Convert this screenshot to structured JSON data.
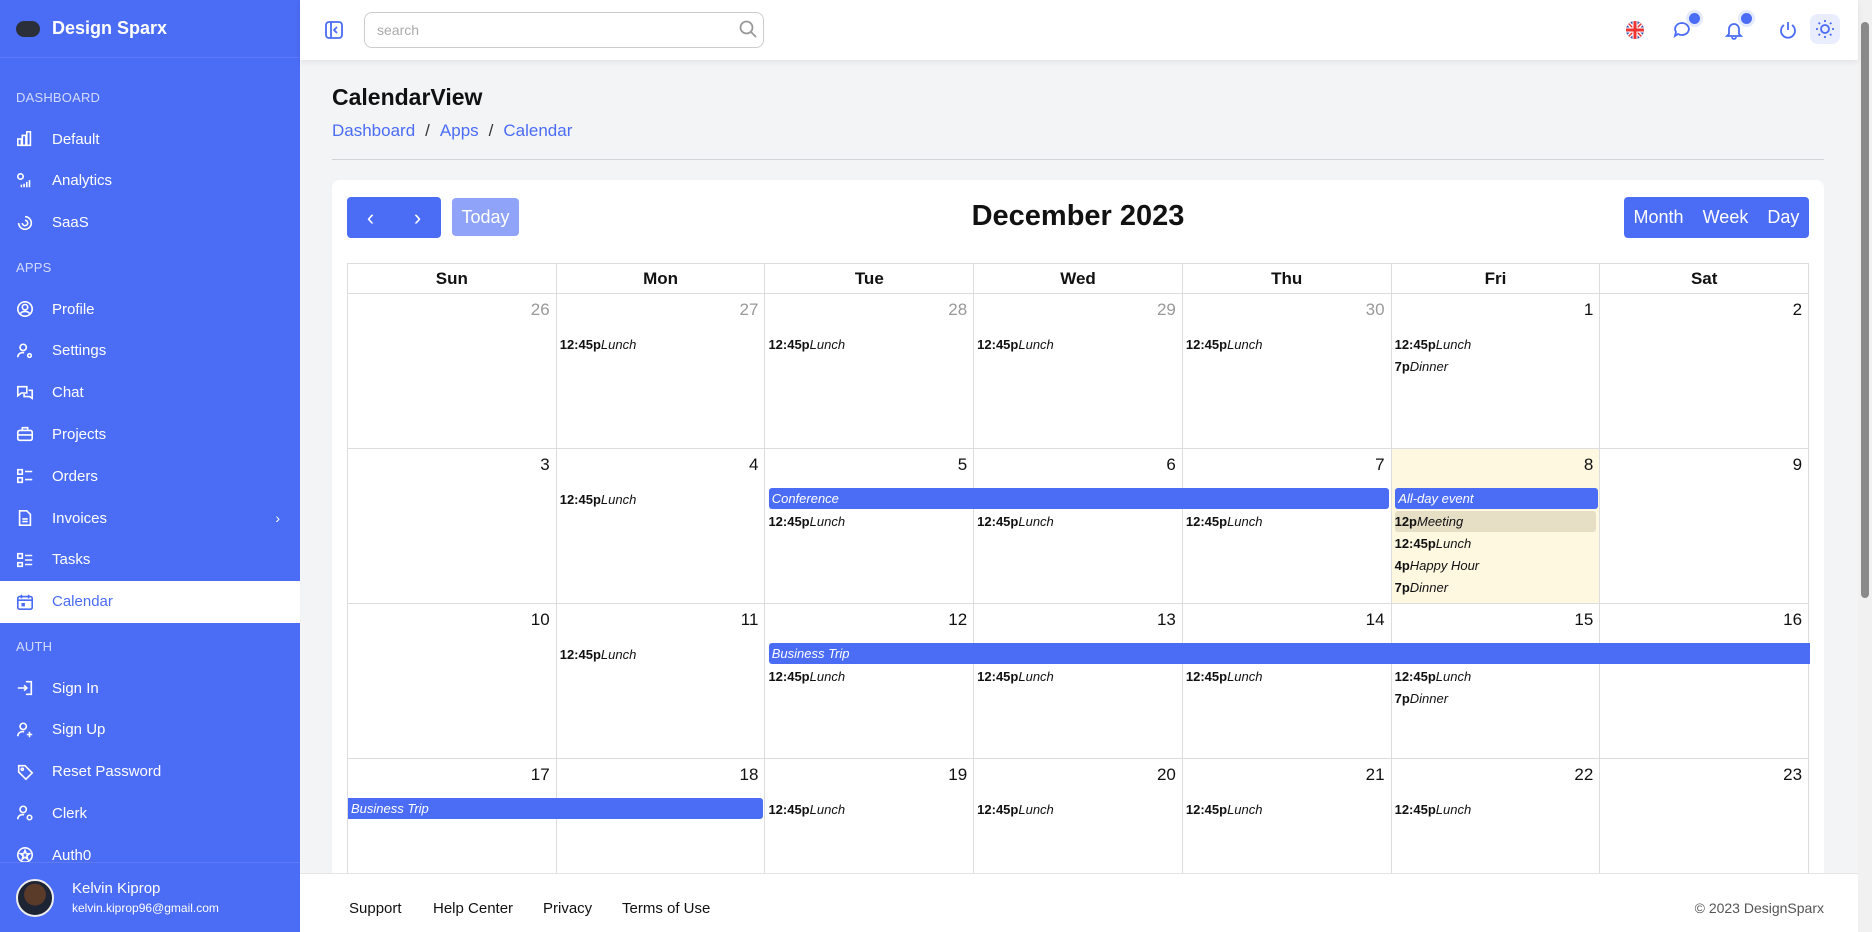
{
  "app": {
    "name": "Design Sparx"
  },
  "sidebar": {
    "sections": [
      {
        "label": "DASHBOARD",
        "items": [
          {
            "label": "Default",
            "icon": "bar-chart-icon"
          },
          {
            "label": "Analytics",
            "icon": "analytics-icon"
          },
          {
            "label": "SaaS",
            "icon": "saas-icon"
          }
        ]
      },
      {
        "label": "APPS",
        "items": [
          {
            "label": "Profile",
            "icon": "user-circle-icon"
          },
          {
            "label": "Settings",
            "icon": "user-settings-icon"
          },
          {
            "label": "Chat",
            "icon": "chat-icon"
          },
          {
            "label": "Projects",
            "icon": "briefcase-icon"
          },
          {
            "label": "Orders",
            "icon": "list-icon"
          },
          {
            "label": "Invoices",
            "icon": "file-icon",
            "has_children": true
          },
          {
            "label": "Tasks",
            "icon": "tasks-icon"
          },
          {
            "label": "Calendar",
            "icon": "calendar-icon",
            "active": true
          }
        ]
      },
      {
        "label": "AUTH",
        "items": [
          {
            "label": "Sign In",
            "icon": "sign-in-icon"
          },
          {
            "label": "Sign Up",
            "icon": "user-plus-icon"
          },
          {
            "label": "Reset Password",
            "icon": "tag-icon"
          },
          {
            "label": "Clerk",
            "icon": "user-icon"
          },
          {
            "label": "Auth0",
            "icon": "auth0-icon"
          }
        ]
      }
    ],
    "user": {
      "name": "Kelvin Kiprop",
      "email": "kelvin.kiprop96@gmail.com"
    }
  },
  "topbar": {
    "search_placeholder": "search",
    "icons": [
      "sidebar-toggle-icon",
      "search-icon",
      "uk-flag-icon",
      "chat-icon",
      "bell-icon",
      "power-icon",
      "sun-icon"
    ]
  },
  "page": {
    "title": "CalendarView",
    "breadcrumb": [
      "Dashboard",
      "Apps",
      "Calendar"
    ]
  },
  "calendar": {
    "title": "December 2023",
    "today_label": "Today",
    "views": [
      "Month",
      "Week",
      "Day"
    ],
    "weekdays": [
      "Sun",
      "Mon",
      "Tue",
      "Wed",
      "Thu",
      "Fri",
      "Sat"
    ],
    "weeks": [
      {
        "days": [
          {
            "num": "26",
            "muted": true
          },
          {
            "num": "27",
            "muted": true
          },
          {
            "num": "28",
            "muted": true
          },
          {
            "num": "29",
            "muted": true
          },
          {
            "num": "30",
            "muted": true
          },
          {
            "num": "1"
          },
          {
            "num": "2"
          }
        ],
        "bars": [],
        "events": [
          [],
          [
            {
              "time": "12:45p",
              "title": "Lunch"
            }
          ],
          [
            {
              "time": "12:45p",
              "title": "Lunch"
            }
          ],
          [
            {
              "time": "12:45p",
              "title": "Lunch"
            }
          ],
          [
            {
              "time": "12:45p",
              "title": "Lunch"
            }
          ],
          [
            {
              "time": "12:45p",
              "title": "Lunch"
            },
            {
              "time": "7p",
              "title": "Dinner"
            }
          ],
          []
        ]
      },
      {
        "days": [
          {
            "num": "3"
          },
          {
            "num": "4"
          },
          {
            "num": "5"
          },
          {
            "num": "6"
          },
          {
            "num": "7"
          },
          {
            "num": "8",
            "today": true
          },
          {
            "num": "9"
          }
        ],
        "bars": [
          {
            "title": "Conference",
            "start": 2,
            "span": 3
          },
          {
            "title": "All-day event",
            "start": 5,
            "span": 1
          }
        ],
        "events": [
          [],
          [
            {
              "time": "12:45p",
              "title": "Lunch"
            }
          ],
          [
            {
              "time": "12:45p",
              "title": "Lunch"
            }
          ],
          [
            {
              "time": "12:45p",
              "title": "Lunch"
            }
          ],
          [
            {
              "time": "12:45p",
              "title": "Lunch"
            }
          ],
          [
            {
              "time": "12p",
              "title": "Meeting",
              "highlight": true
            },
            {
              "time": "12:45p",
              "title": "Lunch"
            },
            {
              "time": "4p",
              "title": "Happy Hour"
            },
            {
              "time": "7p",
              "title": "Dinner"
            }
          ],
          []
        ]
      },
      {
        "days": [
          {
            "num": "10"
          },
          {
            "num": "11"
          },
          {
            "num": "12"
          },
          {
            "num": "13"
          },
          {
            "num": "14"
          },
          {
            "num": "15"
          },
          {
            "num": "16"
          }
        ],
        "bars": [
          {
            "title": "Business Trip",
            "start": 2,
            "span": 5,
            "continues": true
          }
        ],
        "events": [
          [],
          [
            {
              "time": "12:45p",
              "title": "Lunch"
            }
          ],
          [
            {
              "time": "12:45p",
              "title": "Lunch"
            }
          ],
          [
            {
              "time": "12:45p",
              "title": "Lunch"
            }
          ],
          [
            {
              "time": "12:45p",
              "title": "Lunch"
            }
          ],
          [
            {
              "time": "12:45p",
              "title": "Lunch"
            },
            {
              "time": "7p",
              "title": "Dinner"
            }
          ],
          []
        ]
      },
      {
        "days": [
          {
            "num": "17"
          },
          {
            "num": "18"
          },
          {
            "num": "19"
          },
          {
            "num": "20"
          },
          {
            "num": "21"
          },
          {
            "num": "22"
          },
          {
            "num": "23"
          }
        ],
        "bars": [
          {
            "title": "Business Trip",
            "start": 0,
            "span": 2,
            "continued": true
          }
        ],
        "events": [
          [],
          [],
          [
            {
              "time": "12:45p",
              "title": "Lunch"
            }
          ],
          [
            {
              "time": "12:45p",
              "title": "Lunch"
            }
          ],
          [
            {
              "time": "12:45p",
              "title": "Lunch"
            }
          ],
          [
            {
              "time": "12:45p",
              "title": "Lunch"
            }
          ],
          []
        ]
      }
    ]
  },
  "footer": {
    "links": [
      "Support",
      "Help Center",
      "Privacy",
      "Terms of Use"
    ],
    "copyright": "© 2023 DesignSparx"
  },
  "colors": {
    "primary": "#4b6cf5",
    "today": "#fef8e1",
    "highlight": "#e6dfc6"
  }
}
